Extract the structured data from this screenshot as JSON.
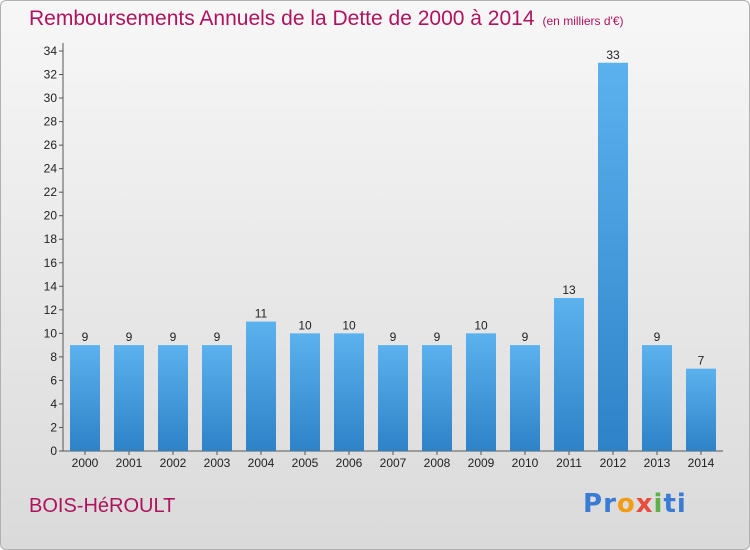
{
  "title": "Remboursements Annuels de la Dette de 2000 à 2014",
  "subtitle": "(en milliers d'€)",
  "place": "BOIS-HéROULT",
  "logo": {
    "letters": [
      "P",
      "r",
      "o",
      "x",
      "i",
      "t",
      "i"
    ],
    "colors": [
      "#3a7bd5",
      "#3a7bd5",
      "#f39c12",
      "#e74c3c",
      "#5fb04b",
      "#3a7bd5",
      "#3a7bd5"
    ]
  },
  "colors": {
    "bar": "#4da3e6",
    "title": "#b0135e"
  },
  "chart_data": {
    "type": "bar",
    "title": "Remboursements Annuels de la Dette de 2000 à 2014",
    "subtitle": "(en milliers d'€)",
    "categories": [
      "2000",
      "2001",
      "2002",
      "2003",
      "2004",
      "2005",
      "2006",
      "2007",
      "2008",
      "2009",
      "2010",
      "2011",
      "2012",
      "2013",
      "2014"
    ],
    "values": [
      9,
      9,
      9,
      9,
      11,
      10,
      10,
      9,
      9,
      10,
      9,
      13,
      33,
      9,
      7
    ],
    "ylim": [
      0,
      34
    ],
    "yticks": [
      0,
      2,
      4,
      6,
      8,
      10,
      12,
      14,
      16,
      18,
      20,
      22,
      24,
      26,
      28,
      30,
      32,
      34
    ],
    "grid": false,
    "legend": "none",
    "data_labels": true
  }
}
